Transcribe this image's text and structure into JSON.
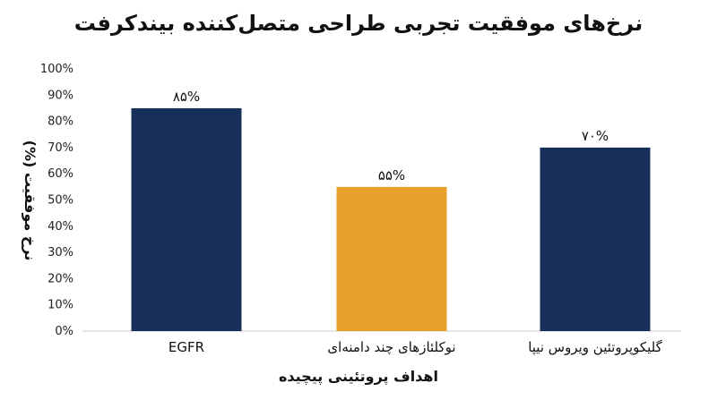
{
  "chart_data": {
    "type": "bar",
    "title": "نرخ‌های موفقیت تجربی طراحی متصل‌کننده بیندکرفت",
    "xlabel": "اهداف پروتئینی پیچیده",
    "ylabel": "نرخ موفقیت (%)",
    "categories": [
      "EGFR",
      "نوکلئازهای چند دامنه‌ای",
      "گلیکوپروتئین ویروس نیپا"
    ],
    "values": [
      85,
      55,
      70
    ],
    "data_labels": [
      "۸۵%",
      "۵۵%",
      "۷۰%"
    ],
    "bar_colors": [
      "#17305a",
      "#e8a12a",
      "#17305a"
    ],
    "ylim": [
      0,
      100
    ],
    "yticks": [
      0,
      10,
      20,
      30,
      40,
      50,
      60,
      70,
      80,
      90,
      100
    ],
    "ytick_labels": [
      "0%",
      "10%",
      "20%",
      "30%",
      "40%",
      "50%",
      "60%",
      "70%",
      "80%",
      "90%",
      "100%"
    ],
    "grid": false,
    "legend": "none"
  }
}
